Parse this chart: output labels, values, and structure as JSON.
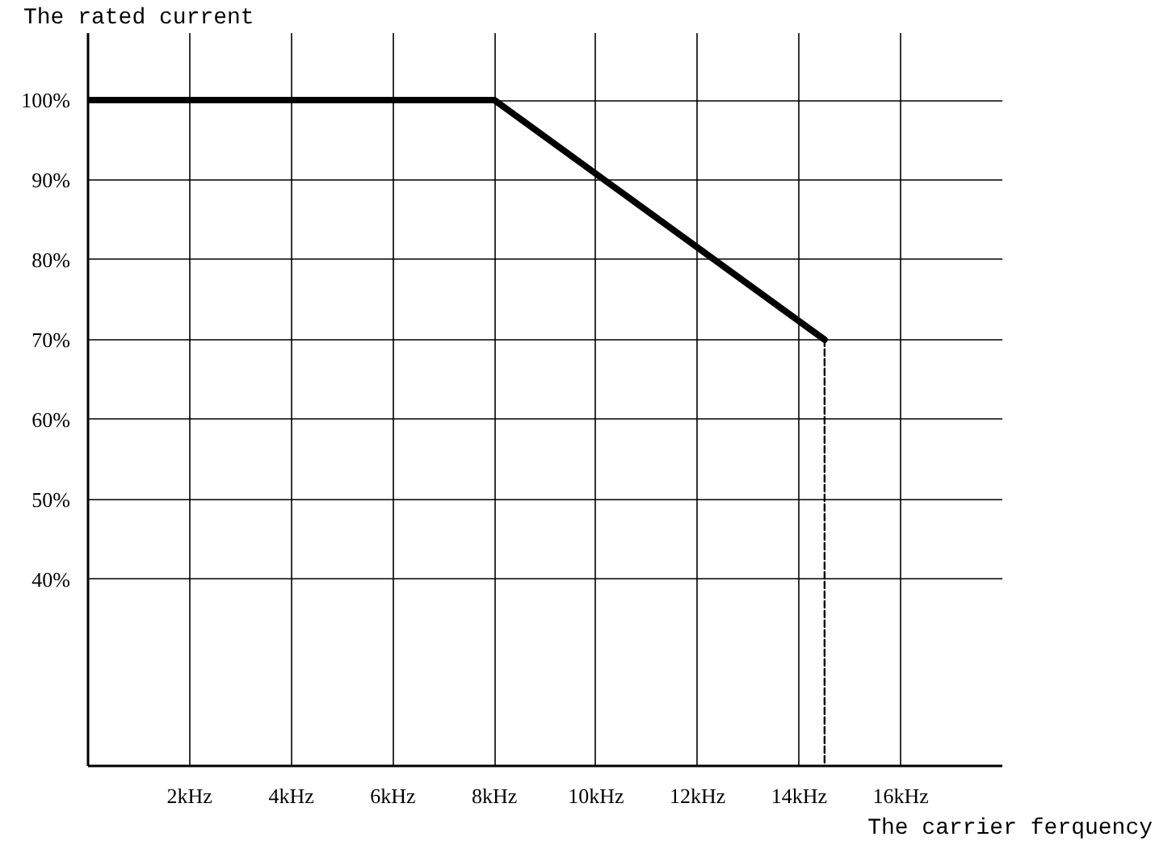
{
  "chart_data": {
    "type": "line",
    "xlabel": "The carrier ferquency",
    "ylabel": "The rated current",
    "xlim": [
      0,
      18
    ],
    "ylim": [
      16.6,
      108.4
    ],
    "xticks": [
      {
        "value": 2,
        "label": "2kHz"
      },
      {
        "value": 4,
        "label": "4kHz"
      },
      {
        "value": 6,
        "label": "6kHz"
      },
      {
        "value": 8,
        "label": "8kHz"
      },
      {
        "value": 10,
        "label": "10kHz"
      },
      {
        "value": 12,
        "label": "12kHz"
      },
      {
        "value": 14,
        "label": "14kHz"
      },
      {
        "value": 16,
        "label": "16kHz"
      }
    ],
    "yticks": [
      {
        "value": 40,
        "label": "40%"
      },
      {
        "value": 50,
        "label": "50%"
      },
      {
        "value": 60,
        "label": "60%"
      },
      {
        "value": 70,
        "label": "70%"
      },
      {
        "value": 80,
        "label": "80%"
      },
      {
        "value": 90,
        "label": "90%"
      },
      {
        "value": 100,
        "label": "100%"
      }
    ],
    "grid": true,
    "series": [
      {
        "color": "#000000",
        "x": [
          0,
          8,
          14.5
        ],
        "values": [
          100,
          100,
          70
        ],
        "line_style": "solid"
      },
      {
        "color": "#000000",
        "x": [
          14.5,
          14.5
        ],
        "values": [
          70,
          16.6
        ],
        "line_style": "dashed"
      }
    ]
  }
}
